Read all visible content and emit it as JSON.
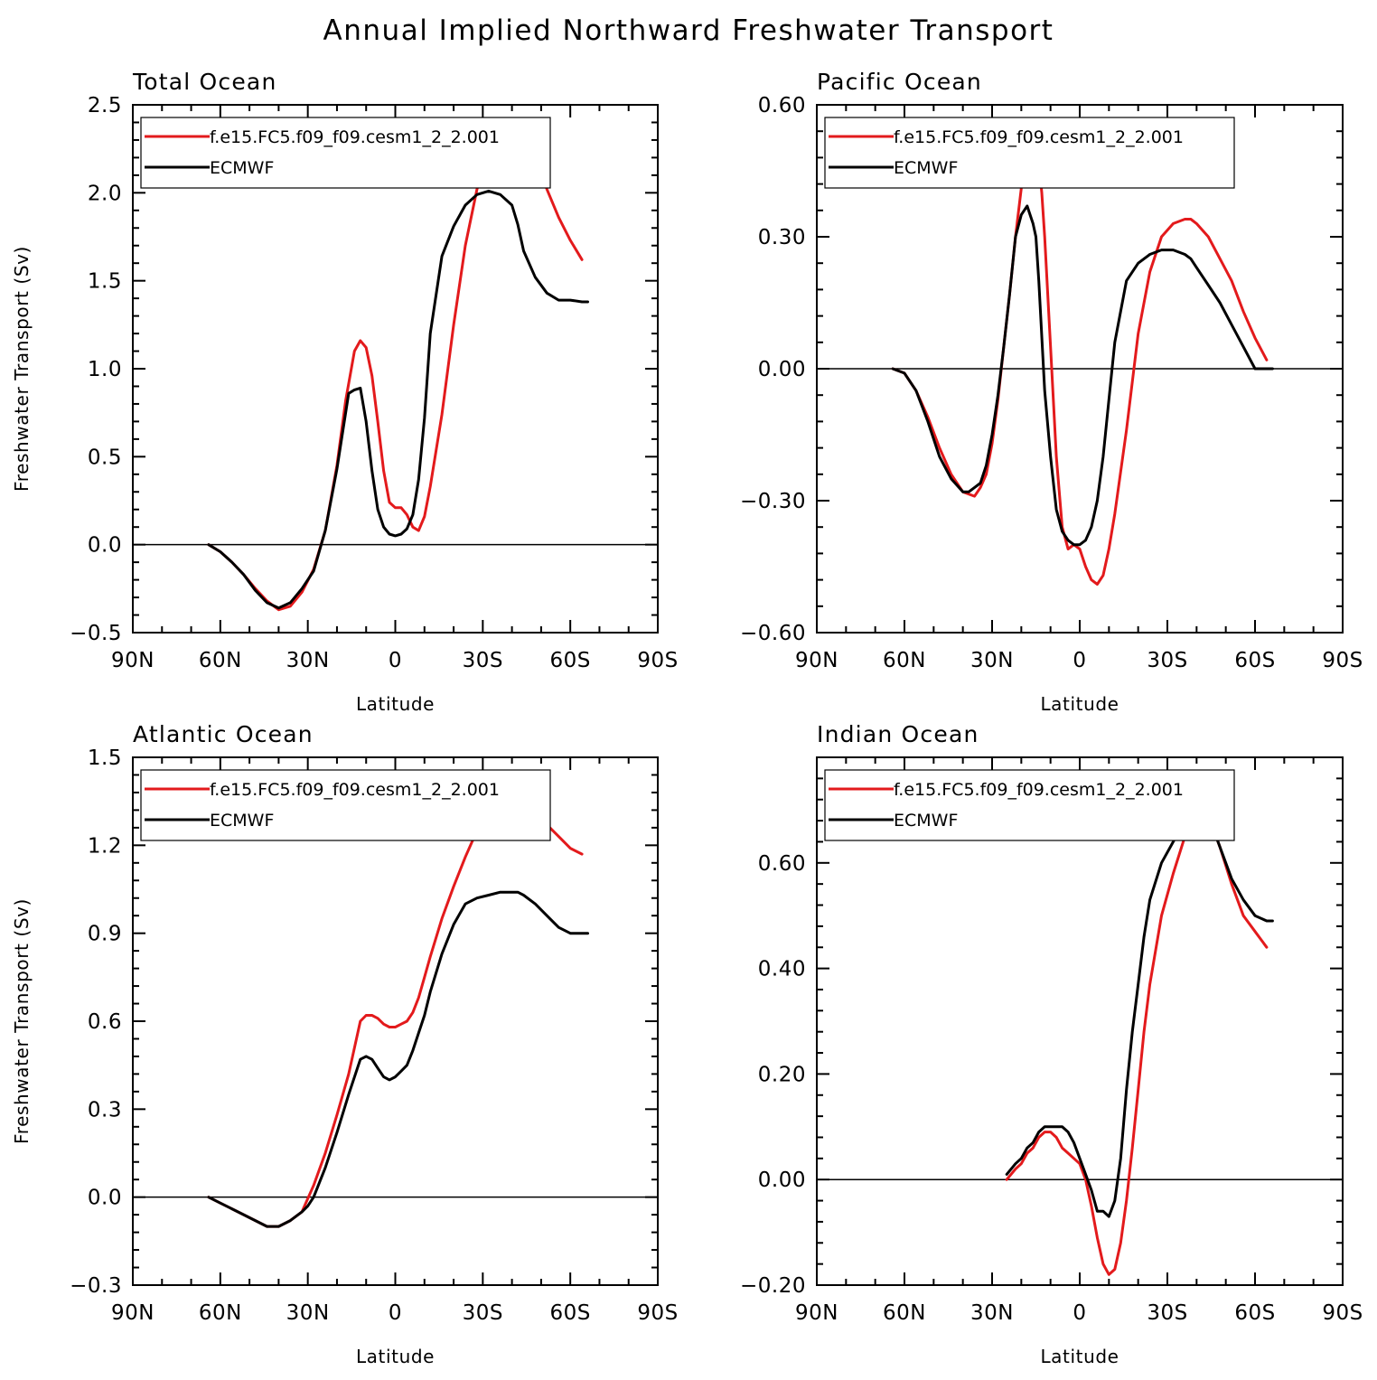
{
  "title": "Annual Implied Northward Freshwater Transport",
  "legend_labels": [
    "f.e15.FC5.f09_f09.cesm1_2_2.001",
    "ECMWF"
  ],
  "colors": {
    "model": "#e31a1c",
    "obs": "#000000",
    "axes": "#000000"
  },
  "chart_data": [
    {
      "type": "line",
      "title": "Total Ocean",
      "xlabel": "Latitude",
      "ylabel": "Freshwater Transport (Sv)",
      "xlim": [
        -90,
        90
      ],
      "xticks": [
        -90,
        -60,
        -30,
        0,
        30,
        60,
        90
      ],
      "xtick_labels": [
        "90N",
        "60N",
        "30N",
        "0",
        "30S",
        "60S",
        "90S"
      ],
      "ylim": [
        -0.5,
        2.5
      ],
      "yticks": [
        -0.5,
        0.0,
        0.5,
        1.0,
        1.5,
        2.0,
        2.5
      ],
      "ytick_labels": [
        "−0.5",
        "0.0",
        "0.5",
        "1.0",
        "1.5",
        "2.0",
        "2.5"
      ],
      "legend_position": "top-left",
      "zero_line": true,
      "series": [
        {
          "name": "f.e15.FC5.f09_f09.cesm1_2_2.001",
          "x": [
            -64,
            -60,
            -56,
            -52,
            -48,
            -44,
            -40,
            -36,
            -32,
            -28,
            -24,
            -20,
            -17,
            -14,
            -12,
            -10,
            -8,
            -6,
            -4,
            -2,
            0,
            2,
            4,
            6,
            8,
            10,
            12,
            16,
            20,
            24,
            28,
            32,
            36,
            40,
            42,
            44,
            48,
            52,
            56,
            60,
            64
          ],
          "y": [
            0,
            -0.04,
            -0.1,
            -0.17,
            -0.25,
            -0.32,
            -0.37,
            -0.35,
            -0.27,
            -0.14,
            0.08,
            0.45,
            0.82,
            1.1,
            1.16,
            1.12,
            0.96,
            0.7,
            0.42,
            0.24,
            0.21,
            0.21,
            0.17,
            0.1,
            0.08,
            0.16,
            0.33,
            0.74,
            1.25,
            1.7,
            2.02,
            2.23,
            2.36,
            2.41,
            2.4,
            2.36,
            2.22,
            2.02,
            1.86,
            1.73,
            1.62
          ]
        },
        {
          "name": "ECMWF",
          "x": [
            -64,
            -60,
            -56,
            -52,
            -48,
            -44,
            -40,
            -36,
            -32,
            -28,
            -24,
            -20,
            -16,
            -14,
            -12,
            -10,
            -8,
            -6,
            -4,
            -2,
            0,
            2,
            4,
            6,
            8,
            10,
            12,
            16,
            20,
            24,
            28,
            32,
            36,
            40,
            42,
            44,
            48,
            52,
            56,
            60,
            64,
            66
          ],
          "y": [
            0,
            -0.04,
            -0.1,
            -0.17,
            -0.26,
            -0.33,
            -0.36,
            -0.33,
            -0.25,
            -0.15,
            0.08,
            0.43,
            0.86,
            0.88,
            0.89,
            0.7,
            0.42,
            0.2,
            0.1,
            0.06,
            0.05,
            0.06,
            0.09,
            0.17,
            0.37,
            0.72,
            1.2,
            1.64,
            1.81,
            1.93,
            1.99,
            2.01,
            1.99,
            1.93,
            1.82,
            1.67,
            1.52,
            1.43,
            1.39,
            1.39,
            1.38,
            1.38
          ]
        }
      ]
    },
    {
      "type": "line",
      "title": "Pacific Ocean",
      "xlabel": "Latitude",
      "ylabel": "",
      "xlim": [
        -90,
        90
      ],
      "xticks": [
        -90,
        -60,
        -30,
        0,
        30,
        60,
        90
      ],
      "xtick_labels": [
        "90N",
        "60N",
        "30N",
        "0",
        "30S",
        "60S",
        "90S"
      ],
      "ylim": [
        -0.6,
        0.6
      ],
      "yticks": [
        -0.6,
        -0.3,
        0.0,
        0.3,
        0.6
      ],
      "ytick_labels": [
        "−0.60",
        "−0.30",
        "0.00",
        "0.30",
        "0.60"
      ],
      "legend_position": "top-left",
      "zero_line": true,
      "series": [
        {
          "name": "f.e15.FC5.f09_f09.cesm1_2_2.001",
          "x": [
            -64,
            -60,
            -56,
            -52,
            -48,
            -44,
            -40,
            -36,
            -34,
            -32,
            -30,
            -28,
            -26,
            -24,
            -22,
            -20,
            -18,
            -16,
            -14,
            -13,
            -12,
            -10,
            -8,
            -6,
            -4,
            -2,
            0,
            2,
            4,
            6,
            8,
            10,
            12,
            16,
            20,
            24,
            28,
            32,
            36,
            38,
            40,
            44,
            48,
            52,
            56,
            60,
            64
          ],
          "y": [
            0,
            -0.01,
            -0.05,
            -0.11,
            -0.18,
            -0.24,
            -0.28,
            -0.29,
            -0.27,
            -0.24,
            -0.17,
            -0.07,
            0.05,
            0.17,
            0.3,
            0.41,
            0.48,
            0.49,
            0.47,
            0.4,
            0.3,
            0.05,
            -0.2,
            -0.36,
            -0.41,
            -0.4,
            -0.41,
            -0.45,
            -0.48,
            -0.49,
            -0.47,
            -0.41,
            -0.33,
            -0.14,
            0.08,
            0.22,
            0.3,
            0.33,
            0.34,
            0.34,
            0.33,
            0.3,
            0.25,
            0.2,
            0.13,
            0.07,
            0.02
          ]
        },
        {
          "name": "ECMWF",
          "x": [
            -64,
            -60,
            -56,
            -52,
            -48,
            -44,
            -40,
            -38,
            -36,
            -34,
            -32,
            -30,
            -28,
            -26,
            -24,
            -22,
            -20,
            -18,
            -16,
            -15,
            -14,
            -12,
            -10,
            -8,
            -6,
            -4,
            -2,
            0,
            2,
            4,
            6,
            8,
            10,
            12,
            16,
            20,
            24,
            28,
            32,
            36,
            38,
            40,
            44,
            48,
            52,
            56,
            60,
            64,
            66
          ],
          "y": [
            0,
            -0.01,
            -0.05,
            -0.12,
            -0.2,
            -0.25,
            -0.28,
            -0.28,
            -0.27,
            -0.26,
            -0.22,
            -0.15,
            -0.06,
            0.05,
            0.17,
            0.3,
            0.35,
            0.37,
            0.33,
            0.3,
            0.2,
            -0.05,
            -0.2,
            -0.32,
            -0.37,
            -0.39,
            -0.4,
            -0.4,
            -0.39,
            -0.36,
            -0.3,
            -0.2,
            -0.07,
            0.06,
            0.2,
            0.24,
            0.26,
            0.27,
            0.27,
            0.26,
            0.25,
            0.23,
            0.19,
            0.15,
            0.1,
            0.05,
            0.0,
            0.0,
            0.0
          ]
        }
      ]
    },
    {
      "type": "line",
      "title": "Atlantic Ocean",
      "xlabel": "Latitude",
      "ylabel": "Freshwater Transport (Sv)",
      "xlim": [
        -90,
        90
      ],
      "xticks": [
        -90,
        -60,
        -30,
        0,
        30,
        60,
        90
      ],
      "xtick_labels": [
        "90N",
        "60N",
        "30N",
        "0",
        "30S",
        "60S",
        "90S"
      ],
      "ylim": [
        -0.3,
        1.5
      ],
      "yticks": [
        -0.3,
        0.0,
        0.3,
        0.6,
        0.9,
        1.2,
        1.5
      ],
      "ytick_labels": [
        "−0.3",
        "0.0",
        "0.3",
        "0.6",
        "0.9",
        "1.2",
        "1.5"
      ],
      "legend_position": "top-left",
      "zero_line": true,
      "series": [
        {
          "name": "f.e15.FC5.f09_f09.cesm1_2_2.001",
          "x": [
            -64,
            -60,
            -56,
            -52,
            -48,
            -44,
            -40,
            -36,
            -32,
            -28,
            -24,
            -20,
            -16,
            -12,
            -10,
            -8,
            -6,
            -4,
            -2,
            0,
            2,
            4,
            6,
            8,
            10,
            12,
            16,
            20,
            24,
            28,
            32,
            36,
            40,
            42,
            44,
            48,
            52,
            56,
            60,
            64
          ],
          "y": [
            0,
            -0.02,
            -0.04,
            -0.06,
            -0.08,
            -0.1,
            -0.1,
            -0.08,
            -0.05,
            0.04,
            0.15,
            0.28,
            0.42,
            0.6,
            0.62,
            0.62,
            0.61,
            0.59,
            0.58,
            0.58,
            0.59,
            0.6,
            0.63,
            0.68,
            0.75,
            0.82,
            0.95,
            1.06,
            1.16,
            1.25,
            1.3,
            1.34,
            1.37,
            1.37,
            1.36,
            1.32,
            1.27,
            1.23,
            1.19,
            1.17
          ]
        },
        {
          "name": "ECMWF",
          "x": [
            -64,
            -60,
            -56,
            -52,
            -48,
            -44,
            -40,
            -36,
            -32,
            -30,
            -28,
            -24,
            -20,
            -16,
            -12,
            -10,
            -8,
            -6,
            -4,
            -2,
            0,
            2,
            4,
            6,
            8,
            10,
            12,
            16,
            20,
            24,
            28,
            32,
            36,
            40,
            42,
            44,
            48,
            52,
            56,
            60,
            64,
            66
          ],
          "y": [
            0,
            -0.02,
            -0.04,
            -0.06,
            -0.08,
            -0.1,
            -0.1,
            -0.08,
            -0.05,
            -0.03,
            0.0,
            0.1,
            0.22,
            0.35,
            0.47,
            0.48,
            0.47,
            0.44,
            0.41,
            0.4,
            0.41,
            0.43,
            0.45,
            0.5,
            0.56,
            0.62,
            0.7,
            0.83,
            0.93,
            1.0,
            1.02,
            1.03,
            1.04,
            1.04,
            1.04,
            1.03,
            1.0,
            0.96,
            0.92,
            0.9,
            0.9,
            0.9
          ]
        }
      ]
    },
    {
      "type": "line",
      "title": "Indian Ocean",
      "xlabel": "Latitude",
      "ylabel": "",
      "xlim": [
        -90,
        90
      ],
      "xticks": [
        -90,
        -60,
        -30,
        0,
        30,
        60,
        90
      ],
      "xtick_labels": [
        "90N",
        "60N",
        "30N",
        "0",
        "30S",
        "60S",
        "90S"
      ],
      "ylim": [
        -0.2,
        0.8
      ],
      "yticks": [
        -0.2,
        0.0,
        0.2,
        0.4,
        0.6
      ],
      "ytick_labels": [
        "−0.20",
        "0.00",
        "0.20",
        "0.40",
        "0.60"
      ],
      "legend_position": "top-left",
      "zero_line": true,
      "series": [
        {
          "name": "f.e15.FC5.f09_f09.cesm1_2_2.001",
          "x": [
            -25,
            -22,
            -20,
            -18,
            -16,
            -14,
            -12,
            -10,
            -8,
            -6,
            -4,
            -2,
            0,
            2,
            4,
            6,
            8,
            10,
            12,
            14,
            16,
            18,
            20,
            22,
            24,
            28,
            32,
            36,
            40,
            42,
            44,
            48,
            52,
            56,
            60,
            64
          ],
          "y": [
            0.0,
            0.02,
            0.03,
            0.05,
            0.06,
            0.08,
            0.09,
            0.09,
            0.08,
            0.06,
            0.05,
            0.04,
            0.03,
            0.0,
            -0.05,
            -0.11,
            -0.16,
            -0.18,
            -0.17,
            -0.12,
            -0.04,
            0.06,
            0.17,
            0.28,
            0.37,
            0.5,
            0.58,
            0.65,
            0.69,
            0.7,
            0.69,
            0.63,
            0.56,
            0.5,
            0.47,
            0.44
          ]
        },
        {
          "name": "ECMWF",
          "x": [
            -25,
            -22,
            -20,
            -18,
            -16,
            -14,
            -12,
            -10,
            -8,
            -6,
            -4,
            -2,
            0,
            2,
            4,
            6,
            8,
            10,
            12,
            14,
            16,
            18,
            20,
            22,
            24,
            28,
            32,
            36,
            40,
            42,
            44,
            48,
            52,
            56,
            60,
            64,
            66
          ],
          "y": [
            0.01,
            0.03,
            0.04,
            0.06,
            0.07,
            0.09,
            0.1,
            0.1,
            0.1,
            0.1,
            0.09,
            0.07,
            0.04,
            0.01,
            -0.02,
            -0.06,
            -0.06,
            -0.07,
            -0.04,
            0.04,
            0.17,
            0.28,
            0.37,
            0.46,
            0.53,
            0.6,
            0.64,
            0.68,
            0.71,
            0.7,
            0.69,
            0.63,
            0.57,
            0.53,
            0.5,
            0.49,
            0.49
          ]
        }
      ]
    }
  ]
}
